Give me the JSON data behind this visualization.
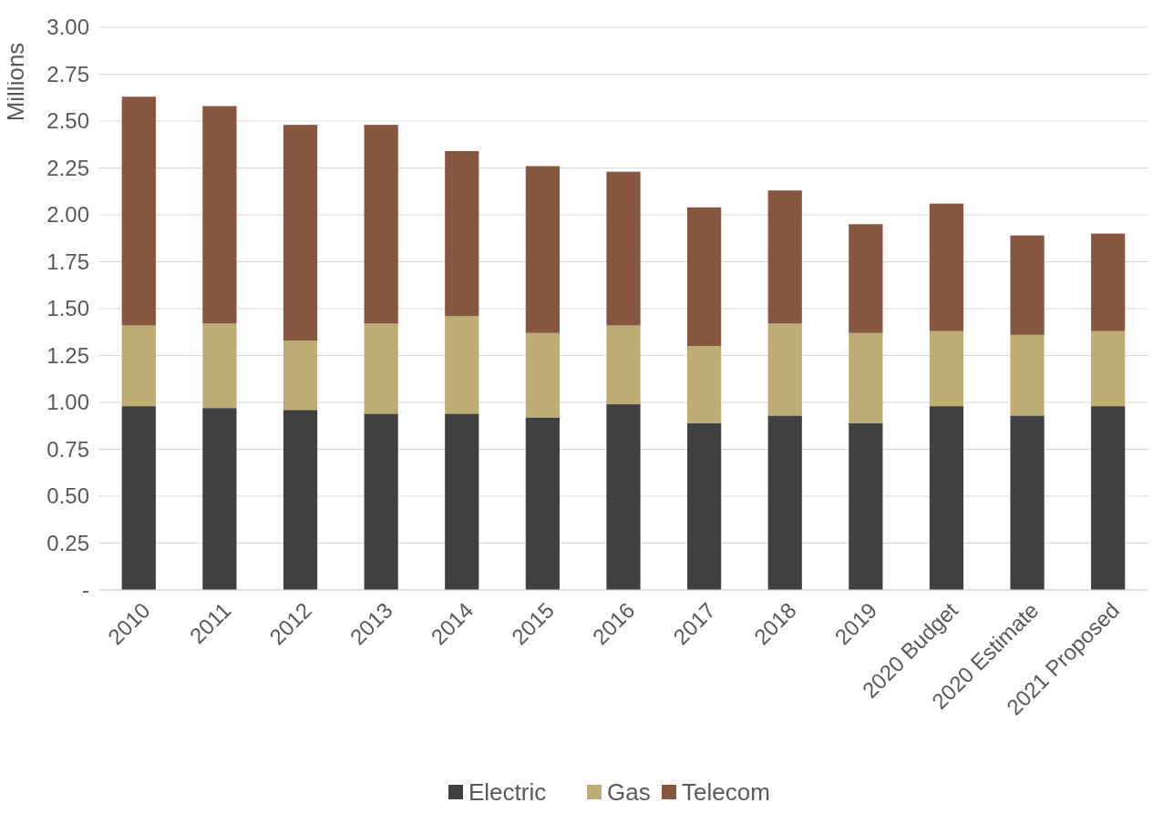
{
  "chart_data": {
    "type": "bar",
    "stacked": true,
    "ylabel": "Millions",
    "categories": [
      "2010",
      "2011",
      "2012",
      "2013",
      "2014",
      "2015",
      "2016",
      "2017",
      "2018",
      "2019",
      "2020 Budget",
      "2020 Estimate",
      "2021 Proposed"
    ],
    "series": [
      {
        "name": "Electric",
        "color": "#404040",
        "values": [
          0.98,
          0.97,
          0.96,
          0.94,
          0.94,
          0.92,
          0.99,
          0.89,
          0.93,
          0.89,
          0.98,
          0.93,
          0.98
        ]
      },
      {
        "name": "Gas",
        "color": "#bdad74",
        "values": [
          0.43,
          0.45,
          0.37,
          0.48,
          0.52,
          0.45,
          0.42,
          0.41,
          0.49,
          0.48,
          0.4,
          0.43,
          0.4
        ]
      },
      {
        "name": "Telecom",
        "color": "#875640",
        "values": [
          1.22,
          1.16,
          1.15,
          1.06,
          0.88,
          0.89,
          0.82,
          0.74,
          0.71,
          0.58,
          0.68,
          0.53,
          0.52
        ]
      }
    ],
    "ylim": [
      0,
      3
    ],
    "yticks": [
      {
        "value": 0,
        "label": "-"
      },
      {
        "value": 0.25,
        "label": "0.25"
      },
      {
        "value": 0.5,
        "label": "0.50"
      },
      {
        "value": 0.75,
        "label": "0.75"
      },
      {
        "value": 1,
        "label": "1.00"
      },
      {
        "value": 1.25,
        "label": "1.25"
      },
      {
        "value": 1.5,
        "label": "1.50"
      },
      {
        "value": 1.75,
        "label": "1.75"
      },
      {
        "value": 2,
        "label": "2.00"
      },
      {
        "value": 2.25,
        "label": "2.25"
      },
      {
        "value": 2.5,
        "label": "2.50"
      },
      {
        "value": 2.75,
        "label": "2.75"
      },
      {
        "value": 3,
        "label": "3.00"
      }
    ],
    "grid": "y",
    "legend": "bottom"
  }
}
